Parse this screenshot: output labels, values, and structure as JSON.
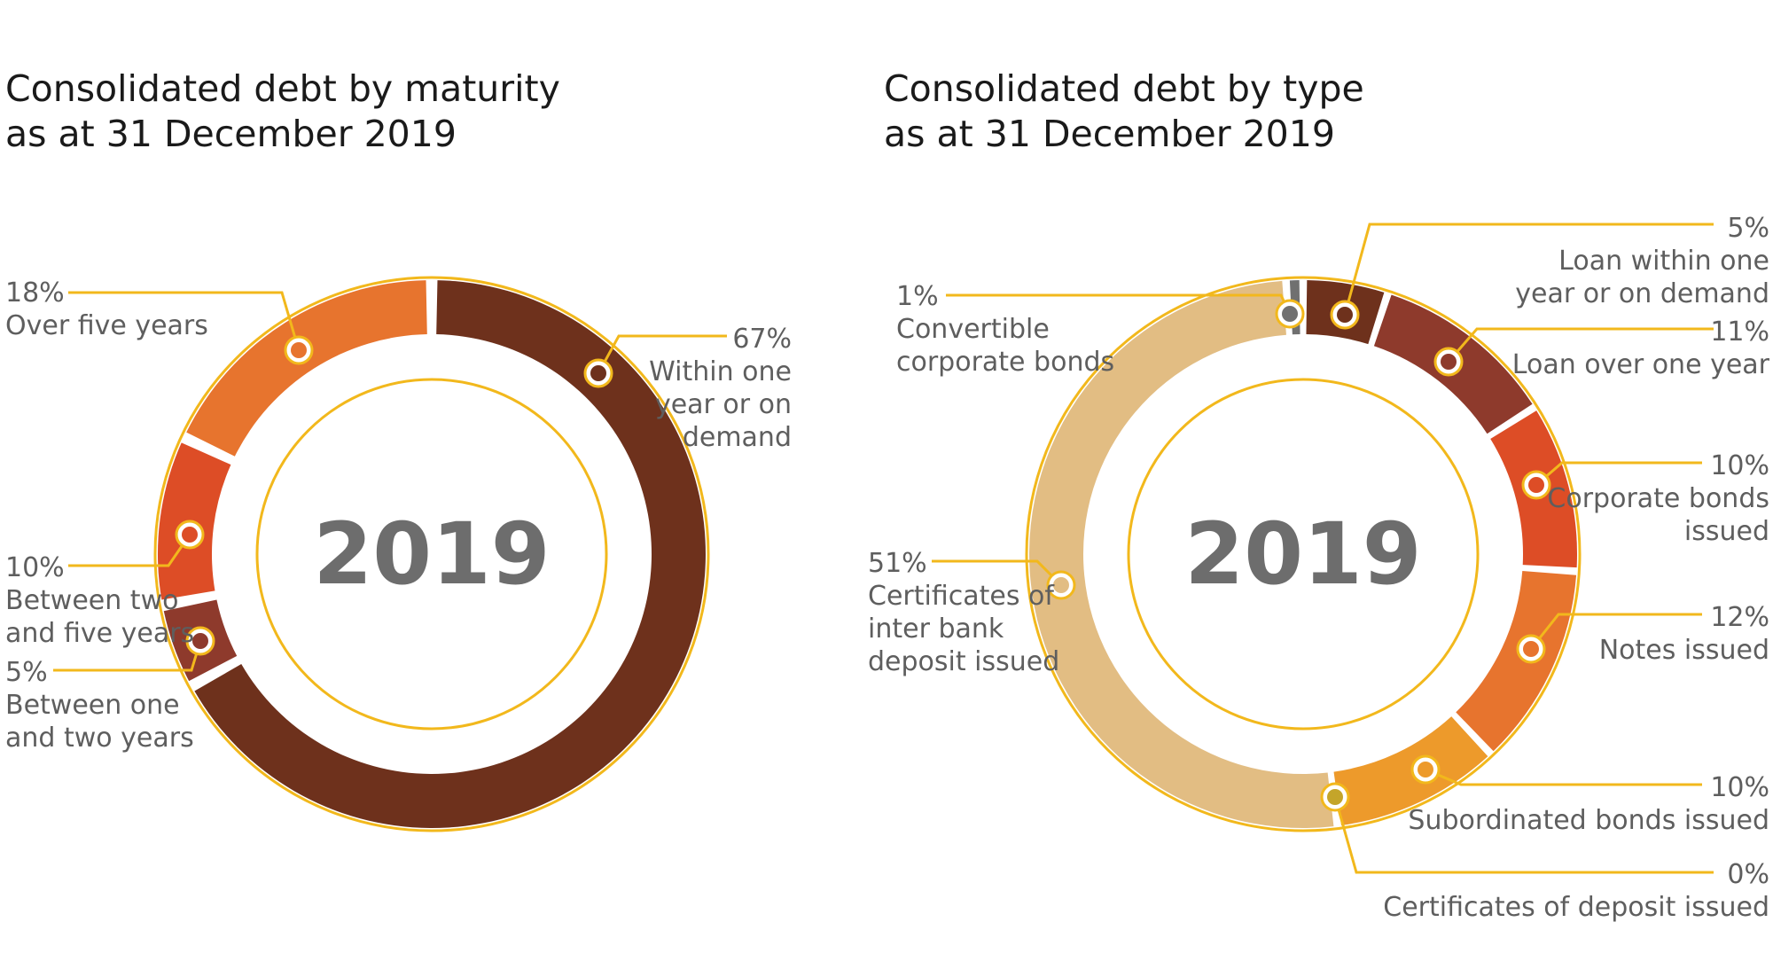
{
  "chart_data": [
    {
      "type": "pie",
      "title": "Consolidated debt by maturity",
      "subtitle": "as at 31 December 2019",
      "center_label": "2019",
      "colors": {
        "ring": "#F2B81C",
        "marker_fill": "#ffffff"
      },
      "slices": [
        {
          "value": 67,
          "value_label": "67%",
          "label_lines": [
            "Within one",
            "year or on",
            "demand"
          ],
          "color": "#6E311C"
        },
        {
          "value": 5,
          "value_label": "5%",
          "label_lines": [
            "Between one",
            "and two years"
          ],
          "color": "#8E3A2C"
        },
        {
          "value": 10,
          "value_label": "10%",
          "label_lines": [
            "Between two",
            "and five years"
          ],
          "color": "#DD4D26"
        },
        {
          "value": 18,
          "value_label": "18%",
          "label_lines": [
            "Over five years"
          ],
          "color": "#E7742E"
        }
      ]
    },
    {
      "type": "pie",
      "title": "Consolidated debt by type",
      "subtitle": "as at 31 December 2019",
      "center_label": "2019",
      "colors": {
        "ring": "#F2B81C",
        "marker_fill": "#ffffff"
      },
      "slices": [
        {
          "value": 5,
          "value_label": "5%",
          "label_lines": [
            "Loan within one",
            "year or on demand"
          ],
          "color": "#6E311C"
        },
        {
          "value": 11,
          "value_label": "11%",
          "label_lines": [
            "Loan over one year"
          ],
          "color": "#8E3A2C"
        },
        {
          "value": 10,
          "value_label": "10%",
          "label_lines": [
            "Corporate bonds",
            "issued"
          ],
          "color": "#DD4D26"
        },
        {
          "value": 12,
          "value_label": "12%",
          "label_lines": [
            "Notes issued"
          ],
          "color": "#E7742E"
        },
        {
          "value": 10,
          "value_label": "10%",
          "label_lines": [
            "Subordinated bonds issued"
          ],
          "color": "#ED9A2B"
        },
        {
          "value": 0,
          "value_label": "0%",
          "label_lines": [
            "Certificates of deposit issued"
          ],
          "color": "#C4A52A"
        },
        {
          "value": 51,
          "value_label": "51%",
          "label_lines": [
            "Certificates of",
            "inter bank",
            "deposit issued"
          ],
          "color": "#E2BD83"
        },
        {
          "value": 1,
          "value_label": "1%",
          "label_lines": [
            "Convertible",
            "corporate bonds"
          ],
          "color": "#707070"
        }
      ]
    }
  ]
}
